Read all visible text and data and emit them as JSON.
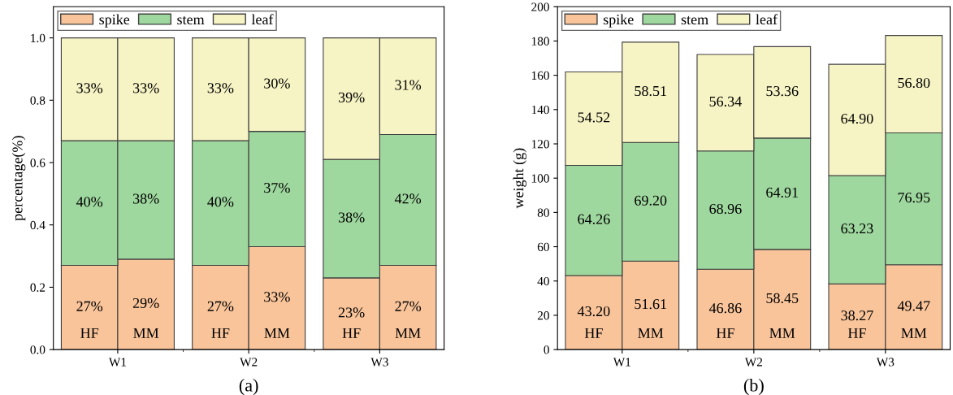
{
  "chart_data": [
    {
      "type": "bar",
      "stacked": true,
      "ylabel": "percentage(%)",
      "categories": [
        "HF",
        "MM",
        "HF",
        "MM",
        "HF",
        "MM"
      ],
      "annotations": [
        "W1",
        "W2",
        "W3",
        "(a)"
      ],
      "ylim": [
        0,
        1.1
      ],
      "yticks": [
        {
          "value": 0,
          "label": "0.0"
        },
        {
          "value": 0.2,
          "label": "0.2"
        },
        {
          "value": 0.4,
          "label": "0.4"
        },
        {
          "value": 0.6,
          "label": "0.6"
        },
        {
          "value": 0.8,
          "label": "0.8"
        },
        {
          "value": 1.0,
          "label": "1.0"
        }
      ],
      "legend": "top left",
      "grid": false,
      "series": [
        {
          "name": "spike",
          "color": "#f9c49a",
          "values": [
            0.27,
            0.29,
            0.27,
            0.33,
            0.23,
            0.27
          ],
          "value_labels": [
            "27%",
            "29%",
            "27%",
            "33%",
            "23%",
            "27%"
          ]
        },
        {
          "name": "stem",
          "color": "#9fd89f",
          "values": [
            0.4,
            0.38,
            0.4,
            0.37,
            0.38,
            0.42
          ],
          "value_labels": [
            "40%",
            "38%",
            "40%",
            "37%",
            "38%",
            "42%"
          ]
        },
        {
          "name": "leaf",
          "color": "#f6f4c4",
          "values": [
            0.33,
            0.33,
            0.33,
            0.3,
            0.39,
            0.31
          ],
          "value_labels": [
            "33%",
            "33%",
            "33%",
            "30%",
            "39%",
            "31%"
          ]
        }
      ]
    },
    {
      "type": "bar",
      "stacked": true,
      "ylabel": "weight (g)",
      "categories": [
        "HF",
        "MM",
        "HF",
        "MM",
        "HF",
        "MM"
      ],
      "annotations": [
        "W1",
        "W2",
        "W3",
        "(b)"
      ],
      "ylim": [
        0,
        200
      ],
      "yticks": [
        0,
        20,
        40,
        60,
        80,
        100,
        120,
        140,
        160,
        180,
        200
      ],
      "legend": "top left",
      "grid": false,
      "series": [
        {
          "name": "spike",
          "color": "#f9c49a",
          "values": [
            43.2,
            51.61,
            46.86,
            58.45,
            38.27,
            49.47
          ],
          "value_labels": [
            "43.20",
            "51.61",
            "46.86",
            "58.45",
            "38.27",
            "49.47"
          ]
        },
        {
          "name": "stem",
          "color": "#9fd89f",
          "values": [
            64.26,
            69.2,
            68.96,
            64.91,
            63.23,
            76.95
          ],
          "value_labels": [
            "64.26",
            "69.20",
            "68.96",
            "64.91",
            "63.23",
            "76.95"
          ]
        },
        {
          "name": "leaf",
          "color": "#f6f4c4",
          "values": [
            54.52,
            58.51,
            56.34,
            53.36,
            64.9,
            56.8
          ],
          "value_labels": [
            "54.52",
            "58.51",
            "56.34",
            "53.36",
            "64.90",
            "56.80"
          ]
        }
      ]
    }
  ]
}
